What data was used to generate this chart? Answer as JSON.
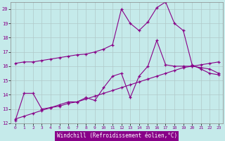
{
  "background_color": "#c5eaea",
  "grid_color": "#b0c8c8",
  "line_color": "#880088",
  "xlim": [
    -0.5,
    23.5
  ],
  "ylim": [
    12,
    20.5
  ],
  "xticks": [
    0,
    1,
    2,
    3,
    4,
    5,
    6,
    7,
    8,
    9,
    10,
    11,
    12,
    13,
    14,
    15,
    16,
    17,
    18,
    19,
    20,
    21,
    22,
    23
  ],
  "yticks": [
    12,
    13,
    14,
    15,
    16,
    17,
    18,
    19,
    20
  ],
  "xlabel": "Windchill (Refroidissement éolien,°C)",
  "series1_x": [
    0,
    1,
    2,
    3,
    4,
    5,
    6,
    7,
    8,
    9,
    10,
    11,
    12,
    13,
    14,
    15,
    16,
    17,
    18,
    19,
    20,
    21,
    22,
    23
  ],
  "series1_y": [
    16.2,
    16.3,
    16.3,
    16.4,
    16.5,
    16.6,
    16.7,
    16.8,
    16.85,
    17.0,
    17.2,
    17.5,
    20.0,
    19.0,
    18.5,
    19.1,
    20.1,
    20.5,
    19.0,
    18.5,
    16.1,
    15.8,
    15.5,
    15.4
  ],
  "series2_x": [
    0,
    1,
    2,
    3,
    4,
    5,
    6,
    7,
    8,
    9,
    10,
    11,
    12,
    13,
    14,
    15,
    16,
    17,
    18,
    19,
    20,
    21,
    22,
    23
  ],
  "series2_y": [
    12.3,
    12.5,
    12.7,
    12.9,
    13.1,
    13.2,
    13.4,
    13.5,
    13.7,
    13.9,
    14.1,
    14.3,
    14.5,
    14.7,
    14.9,
    15.1,
    15.3,
    15.5,
    15.7,
    15.9,
    16.0,
    16.1,
    16.2,
    16.3
  ],
  "series3_x": [
    0,
    1,
    2,
    3,
    4,
    5,
    6,
    7,
    8,
    9,
    10,
    11,
    12,
    13,
    14,
    15,
    16,
    17,
    18,
    19,
    20,
    21,
    22,
    23
  ],
  "series3_y": [
    12.2,
    14.1,
    14.1,
    13.0,
    13.1,
    13.3,
    13.5,
    13.5,
    13.8,
    13.6,
    14.5,
    15.3,
    15.5,
    13.8,
    15.3,
    16.0,
    17.8,
    16.1,
    16.0,
    16.0,
    16.0,
    15.9,
    15.8,
    15.5
  ]
}
